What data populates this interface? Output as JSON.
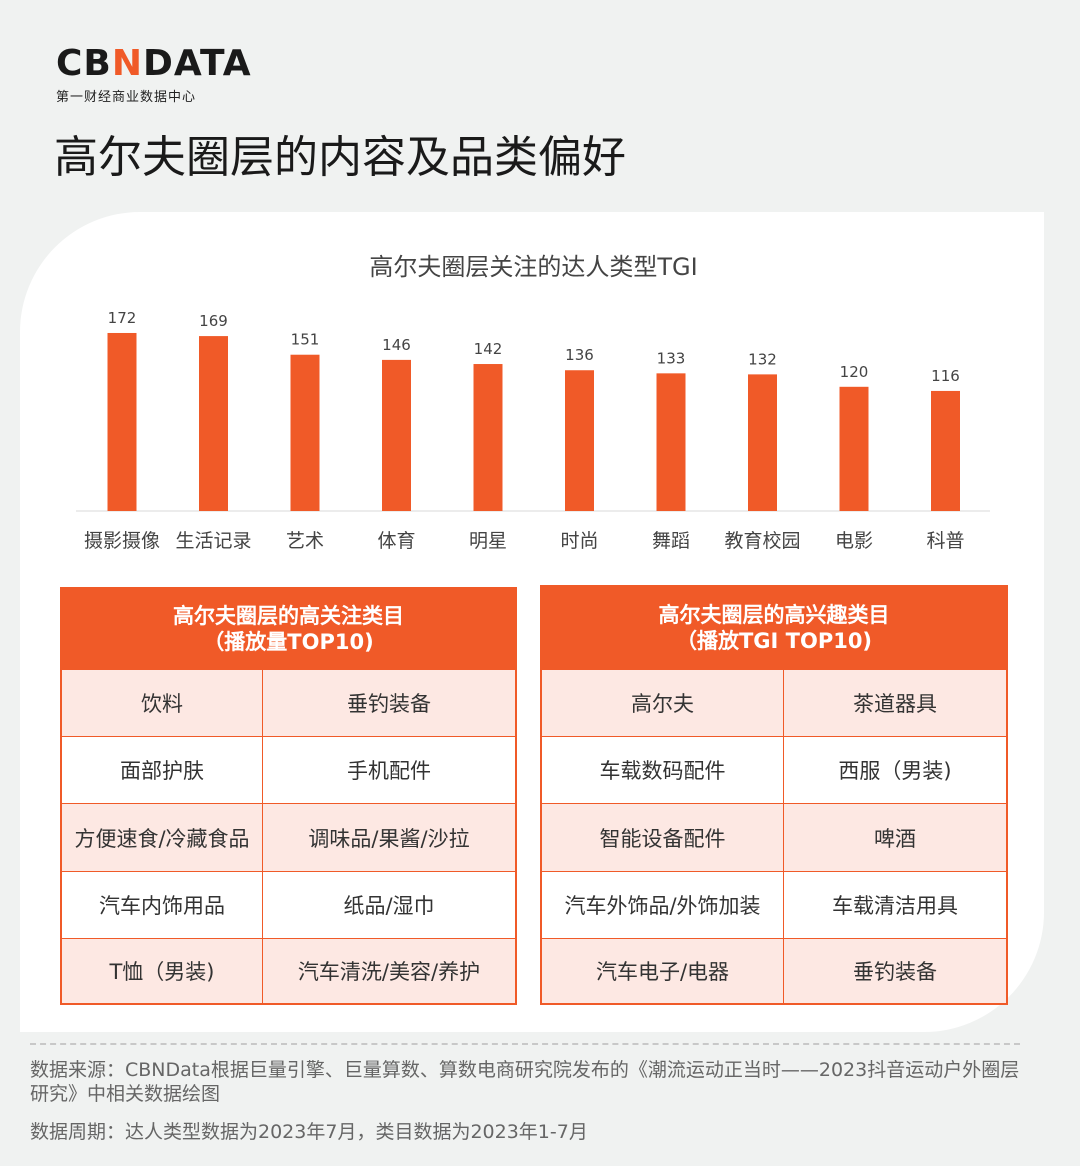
{
  "logo": {
    "left": "CB",
    "mid": "N",
    "right": "DATA",
    "sub": "第一财经商业数据中心"
  },
  "page_title": "高尔夫圈层的内容及品类偏好",
  "chart_data": {
    "type": "bar",
    "title": "高尔夫圈层关注的达人类型TGI",
    "categories": [
      "摄影摄像",
      "生活记录",
      "艺术",
      "体育",
      "明星",
      "时尚",
      "舞蹈",
      "教育校园",
      "电影",
      "科普"
    ],
    "values": [
      172,
      169,
      151,
      146,
      142,
      136,
      133,
      132,
      120,
      116
    ],
    "color": "#f05a28",
    "ylim": [
      0,
      180
    ],
    "grid": false,
    "xlabel": "",
    "ylabel": ""
  },
  "table_left": {
    "header": [
      "高尔夫圈层的高关注类目",
      "（播放量TOP10)"
    ],
    "rows": [
      [
        "饮料",
        "垂钓装备"
      ],
      [
        "面部护肤",
        "手机配件"
      ],
      [
        "方便速食/冷藏食品",
        "调味品/果酱/沙拉"
      ],
      [
        "汽车内饰用品",
        "纸品/湿巾"
      ],
      [
        "T恤（男装)",
        "汽车清洗/美容/养护"
      ]
    ]
  },
  "table_right": {
    "header": [
      "高尔夫圈层的高兴趣类目",
      "（播放TGI TOP10)"
    ],
    "rows": [
      [
        "高尔夫",
        "茶道器具"
      ],
      [
        "车载数码配件",
        "西服（男装)"
      ],
      [
        "智能设备配件",
        "啤酒"
      ],
      [
        "汽车外饰品/外饰加装",
        "车载清洁用具"
      ],
      [
        "汽车电子/电器",
        "垂钓装备"
      ]
    ]
  },
  "footer": {
    "source": "数据来源：CBNData根据巨量引擎、巨量算数、算数电商研究院发布的《潮流运动正当时——2023抖音运动户外圈层研究》中相关数据绘图",
    "period": "数据周期：达人类型数据为2023年7月，类目数据为2023年1-7月"
  },
  "colors": {
    "accent": "#f05a28",
    "pink": "#fde8e3",
    "background": "#f0f2f1"
  }
}
